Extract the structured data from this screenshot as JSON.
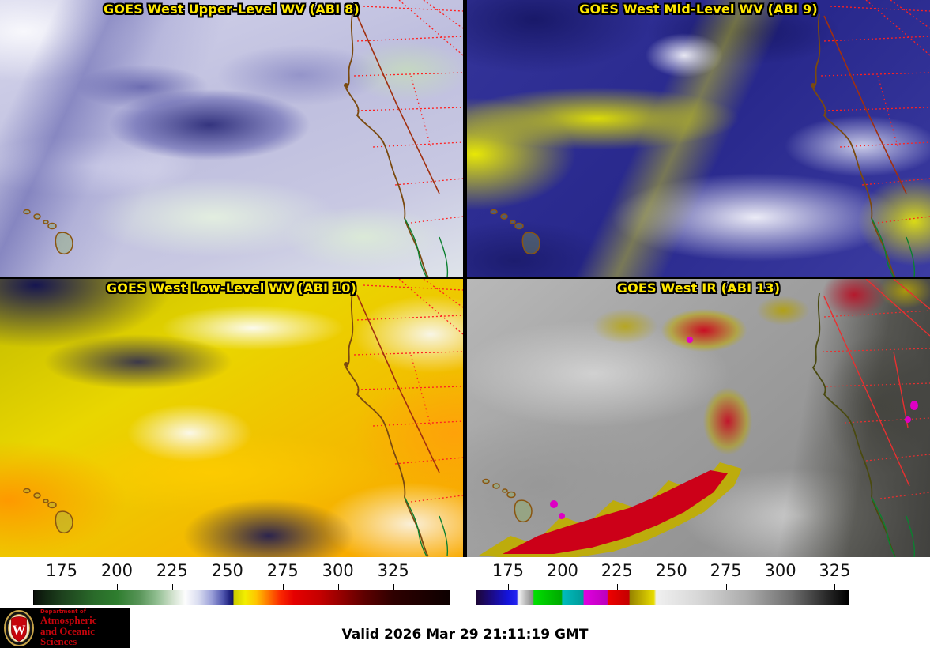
{
  "panels": [
    {
      "title": "GOES West Upper-Level WV (ABI 8)"
    },
    {
      "title": "GOES West Mid-Level WV (ABI 9)"
    },
    {
      "title": "GOES West Low-Level WV (ABI 10)"
    },
    {
      "title": "GOES West IR (ABI 13)"
    }
  ],
  "colorbars": {
    "wv": {
      "label_values": [
        "175",
        "200",
        "225",
        "250",
        "275",
        "300",
        "325"
      ],
      "range": [
        162.5,
        350.5
      ],
      "gradient": [
        [
          "#0a0f0a",
          0
        ],
        [
          "#122712",
          0.029
        ],
        [
          "#1d401d",
          0.066
        ],
        [
          "#2a6b2a",
          0.146
        ],
        [
          "#2e7d2e",
          0.199
        ],
        [
          "#579457",
          0.253
        ],
        [
          "#8fbd8f",
          0.295
        ],
        [
          "#cfe0cb",
          0.332
        ],
        [
          "#fdfdfd",
          0.364
        ],
        [
          "#d9dcf0",
          0.396
        ],
        [
          "#9a9fd8",
          0.428
        ],
        [
          "#4f55ae",
          0.455
        ],
        [
          "#20237f",
          0.471
        ],
        [
          "#12145e",
          0.479
        ],
        [
          "#caca00",
          0.481
        ],
        [
          "#f2ee00",
          0.508
        ],
        [
          "#ffc400",
          0.535
        ],
        [
          "#ff7e00",
          0.561
        ],
        [
          "#fa2800",
          0.593
        ],
        [
          "#e60000",
          0.625
        ],
        [
          "#c40000",
          0.689
        ],
        [
          "#9b0000",
          0.732
        ],
        [
          "#5e0000",
          0.795
        ],
        [
          "#2e0000",
          0.865
        ],
        [
          "#0d0000",
          1
        ]
      ]
    },
    "ir": {
      "label_values": [
        "175",
        "200",
        "225",
        "250",
        "275",
        "300",
        "325"
      ],
      "range": [
        160.5,
        331
      ],
      "gradient": [
        [
          "#1c0636",
          0
        ],
        [
          "#1b0b8a",
          0.044
        ],
        [
          "#1414dc",
          0.085
        ],
        [
          "#2424f0",
          0.108
        ],
        [
          "#f2f2f2",
          0.114
        ],
        [
          "#bdbdbd",
          0.132
        ],
        [
          "#8a8a8a",
          0.152
        ],
        [
          "#00e000",
          0.155
        ],
        [
          "#00c400",
          0.191
        ],
        [
          "#00aa00",
          0.229
        ],
        [
          "#00bcbc",
          0.232
        ],
        [
          "#009a9a",
          0.287
        ],
        [
          "#e000e0",
          0.29
        ],
        [
          "#bc00bc",
          0.352
        ],
        [
          "#ee0000",
          0.355
        ],
        [
          "#c40000",
          0.411
        ],
        [
          "#968200",
          0.413
        ],
        [
          "#e8dc00",
          0.478
        ],
        [
          "#f0f0f0",
          0.484
        ],
        [
          "#d8d8d8",
          0.595
        ],
        [
          "#ababab",
          0.73
        ],
        [
          "#6e6e6e",
          0.848
        ],
        [
          "#262626",
          0.947
        ],
        [
          "#000000",
          1
        ]
      ]
    }
  },
  "footer": {
    "valid_text": "Valid 2026 Mar 29 21:11:19 GMT"
  },
  "logo": {
    "dept": "Department of",
    "line1": "Atmospheric",
    "line2": "and Oceanic Sciences",
    "crest_letter": "W"
  },
  "colors": {
    "title": "#ffe800",
    "coast": "#7a4a10",
    "stateline": "#ff2020",
    "stateborder": "#a03010",
    "mexico": "#0c8030",
    "island": "#8a5510",
    "ir_coast": "#4a4a10",
    "ir_stateline": "#e83030",
    "crest_red": "#c5050c",
    "logo_text": "#c5050c"
  }
}
